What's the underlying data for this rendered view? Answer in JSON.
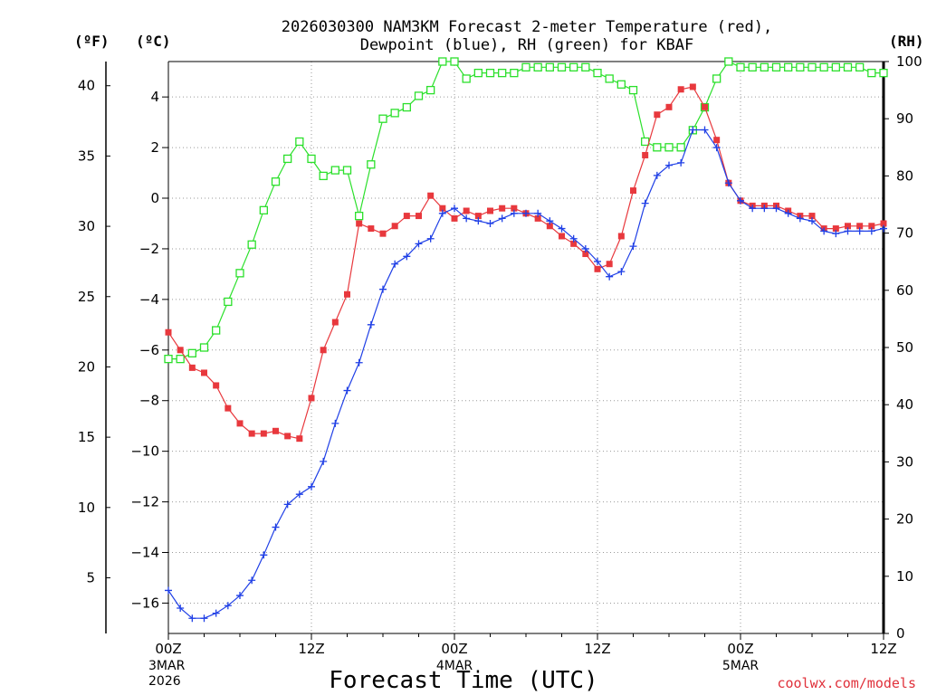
{
  "chart_data": {
    "type": "line",
    "title_line1": "2026030300 NAM3KM Forecast 2-meter Temperature (red),",
    "title_line2": "Dewpoint (blue), RH (green) for KBAF",
    "xlabel": "Forecast Time (UTC)",
    "credit": "coolwx.com/models",
    "unit_labels": {
      "fahrenheit": "(ºF)",
      "celsius": "(ºC)",
      "rh": "(RH)"
    },
    "x_hours": [
      0,
      1,
      2,
      3,
      4,
      5,
      6,
      7,
      8,
      9,
      10,
      11,
      12,
      13,
      14,
      15,
      16,
      17,
      18,
      19,
      20,
      21,
      22,
      23,
      24,
      25,
      26,
      27,
      28,
      29,
      30,
      31,
      32,
      33,
      34,
      35,
      36,
      37,
      38,
      39,
      40,
      41,
      42,
      43,
      44,
      45,
      46,
      47,
      48,
      49,
      50,
      51,
      52,
      53,
      54,
      55,
      56,
      57,
      58,
      59,
      60
    ],
    "xlim": [
      0,
      60
    ],
    "x_ticks": [
      {
        "hour": 0,
        "label": "00Z",
        "date": "3MAR",
        "year": "2026"
      },
      {
        "hour": 12,
        "label": "12Z"
      },
      {
        "hour": 24,
        "label": "00Z",
        "date": "4MAR"
      },
      {
        "hour": 36,
        "label": "12Z"
      },
      {
        "hour": 48,
        "label": "00Z",
        "date": "5MAR"
      },
      {
        "hour": 60,
        "label": "12Z"
      }
    ],
    "celsius_axis": {
      "ylim": [
        -17.2,
        5.4
      ],
      "ticks": [
        -16,
        -14,
        -12,
        -10,
        -8,
        -6,
        -4,
        -2,
        0,
        2,
        4
      ]
    },
    "fahrenheit_axis": {
      "ylim": [
        1.04,
        41.72
      ],
      "ticks": [
        5,
        10,
        15,
        20,
        25,
        30,
        35,
        40
      ]
    },
    "rh_axis": {
      "ylim": [
        0,
        100
      ],
      "ticks": [
        0,
        10,
        20,
        30,
        40,
        50,
        60,
        70,
        80,
        90,
        100
      ]
    },
    "series": [
      {
        "name": "2-meter Temperature",
        "units": "°C",
        "color": "#e8383d",
        "marker": "filled-square",
        "values": [
          -5.3,
          -6.0,
          -6.7,
          -6.9,
          -7.4,
          -8.3,
          -8.9,
          -9.3,
          -9.3,
          -9.2,
          -9.4,
          -9.5,
          -7.9,
          -6.0,
          -4.9,
          -3.8,
          -1.0,
          -1.2,
          -1.4,
          -1.1,
          -0.7,
          -0.7,
          0.1,
          -0.4,
          -0.8,
          -0.5,
          -0.7,
          -0.5,
          -0.4,
          -0.4,
          -0.6,
          -0.8,
          -1.1,
          -1.5,
          -1.8,
          -2.2,
          -2.8,
          -2.6,
          -1.5,
          0.3,
          1.7,
          3.3,
          3.6,
          4.3,
          4.4,
          3.6,
          2.3,
          0.6,
          -0.1,
          -0.3,
          -0.3,
          -0.3,
          -0.5,
          -0.7,
          -0.7,
          -1.2,
          -1.2,
          -1.1,
          -1.1,
          -1.1,
          -1.0
        ]
      },
      {
        "name": "Dewpoint",
        "units": "°C",
        "color": "#1f3fe6",
        "marker": "plus",
        "values": [
          -15.5,
          -16.2,
          -16.6,
          -16.6,
          -16.4,
          -16.1,
          -15.7,
          -15.1,
          -14.1,
          -13.0,
          -12.1,
          -11.7,
          -11.4,
          -10.4,
          -8.9,
          -7.6,
          -6.5,
          -5.0,
          -3.6,
          -2.6,
          -2.3,
          -1.8,
          -1.6,
          -0.6,
          -0.4,
          -0.8,
          -0.9,
          -1.0,
          -0.8,
          -0.6,
          -0.6,
          -0.6,
          -0.9,
          -1.2,
          -1.6,
          -2.0,
          -2.5,
          -3.1,
          -2.9,
          -1.9,
          -0.2,
          0.9,
          1.3,
          1.4,
          2.7,
          2.7,
          2.0,
          0.6,
          -0.1,
          -0.4,
          -0.4,
          -0.4,
          -0.6,
          -0.8,
          -0.9,
          -1.3,
          -1.4,
          -1.3,
          -1.3,
          -1.3,
          -1.2
        ]
      }
    ],
    "rh_series": {
      "name": "RH",
      "units": "%",
      "color": "#2be02b",
      "marker": "open-square",
      "values": [
        48,
        48,
        49,
        50,
        53,
        58,
        63,
        68,
        74,
        79,
        83,
        86,
        83,
        80,
        81,
        81,
        73,
        82,
        90,
        91,
        92,
        94,
        95,
        100,
        100,
        97,
        98,
        98,
        98,
        98,
        99,
        99,
        99,
        99,
        99,
        99,
        98,
        97,
        96,
        95,
        86,
        85,
        85,
        85,
        88,
        92,
        97,
        100,
        99,
        99,
        99,
        99,
        99,
        99,
        99,
        99,
        99,
        99,
        99,
        98,
        98
      ]
    }
  }
}
